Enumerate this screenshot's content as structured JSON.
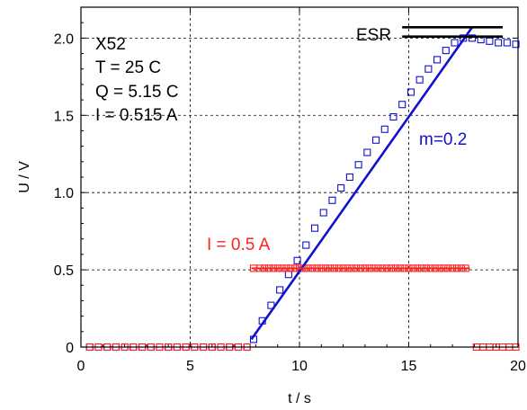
{
  "chart_data": {
    "type": "scatter",
    "xlabel": "t / s",
    "ylabel": "U / V",
    "xlim": [
      0,
      20
    ],
    "ylim": [
      0,
      2.2
    ],
    "x_ticks": [
      0,
      5,
      10,
      15,
      20
    ],
    "y_ticks": [
      0,
      0.5,
      1.0,
      1.5,
      2.0
    ],
    "x_tick_labels": [
      "0",
      "5",
      "10",
      "15",
      "20"
    ],
    "y_tick_labels": [
      "0",
      "0.5",
      "1.0",
      "1.5",
      "2.0"
    ],
    "grid": true,
    "grid_style": "dashed",
    "info_lines": [
      "X52",
      "T = 25 C",
      "Q = 5.15 C",
      "I = 0.515 A"
    ],
    "annotations": {
      "current": "I = 0.5 A",
      "slope": "m=0.2",
      "esr": "ESR"
    },
    "colors": {
      "voltage": "#1010d0",
      "current": "#ff2020",
      "fit": "#1010d0",
      "esr": "#000000",
      "grid": "#000000"
    },
    "series": [
      {
        "marker": "square-open",
        "color": "#1010d0",
        "x": [
          0.4,
          0.8,
          1.2,
          1.6,
          2.0,
          2.4,
          2.8,
          3.2,
          3.6,
          4.0,
          4.4,
          4.8,
          5.2,
          5.6,
          6.0,
          6.4,
          6.8,
          7.2,
          7.6,
          7.9,
          8.3,
          8.7,
          9.1,
          9.5,
          9.9,
          10.3,
          10.7,
          11.1,
          11.5,
          11.9,
          12.3,
          12.7,
          13.1,
          13.5,
          13.9,
          14.3,
          14.7,
          15.1,
          15.5,
          15.9,
          16.3,
          16.7,
          17.1,
          17.5,
          17.9,
          18.3,
          18.7,
          19.1,
          19.5,
          19.9
        ],
        "y": [
          0.0,
          0.0,
          0.0,
          0.0,
          0.0,
          0.0,
          0.0,
          0.0,
          0.0,
          0.0,
          0.0,
          0.0,
          0.0,
          0.0,
          0.0,
          0.0,
          0.0,
          0.0,
          0.0,
          0.05,
          0.17,
          0.27,
          0.37,
          0.47,
          0.56,
          0.66,
          0.77,
          0.87,
          0.95,
          1.03,
          1.1,
          1.18,
          1.26,
          1.34,
          1.41,
          1.49,
          1.57,
          1.65,
          1.73,
          1.8,
          1.86,
          1.92,
          1.97,
          2.0,
          2.0,
          1.99,
          1.98,
          1.97,
          1.97,
          1.96
        ]
      },
      {
        "marker": "square-open",
        "color": "#ff2020",
        "x": [
          0.4,
          0.8,
          1.2,
          1.6,
          2.0,
          2.4,
          2.8,
          3.2,
          3.6,
          4.0,
          4.4,
          4.8,
          5.2,
          5.6,
          6.0,
          6.4,
          6.8,
          7.2,
          7.6,
          7.9,
          8.2,
          8.4,
          8.6,
          8.8,
          9.0,
          9.2,
          9.4,
          9.6,
          9.8,
          10.0,
          10.2,
          10.4,
          10.6,
          10.8,
          11.0,
          11.2,
          11.4,
          11.6,
          11.8,
          12.0,
          12.2,
          12.4,
          12.6,
          12.8,
          13.0,
          13.2,
          13.4,
          13.6,
          13.8,
          14.0,
          14.2,
          14.4,
          14.6,
          14.8,
          15.0,
          15.2,
          15.4,
          15.6,
          15.8,
          16.0,
          16.2,
          16.4,
          16.6,
          16.8,
          17.0,
          17.2,
          17.4,
          17.6,
          18.1,
          18.4,
          18.7,
          19.0,
          19.3,
          19.6,
          19.9
        ],
        "y": [
          0.0,
          0.0,
          0.0,
          0.0,
          0.0,
          0.0,
          0.0,
          0.0,
          0.0,
          0.0,
          0.0,
          0.0,
          0.0,
          0.0,
          0.0,
          0.0,
          0.0,
          0.0,
          0.0,
          0.51,
          0.51,
          0.51,
          0.51,
          0.51,
          0.51,
          0.51,
          0.51,
          0.51,
          0.51,
          0.51,
          0.51,
          0.51,
          0.51,
          0.51,
          0.51,
          0.51,
          0.51,
          0.51,
          0.51,
          0.51,
          0.51,
          0.51,
          0.51,
          0.51,
          0.51,
          0.51,
          0.51,
          0.51,
          0.51,
          0.51,
          0.51,
          0.51,
          0.51,
          0.51,
          0.51,
          0.51,
          0.51,
          0.51,
          0.51,
          0.51,
          0.51,
          0.51,
          0.51,
          0.51,
          0.51,
          0.51,
          0.51,
          0.51,
          0.0,
          0.0,
          0.0,
          0.0,
          0.0,
          0.0,
          0.0
        ]
      }
    ],
    "fit_line": {
      "color": "#1010d0",
      "x": [
        7.8,
        17.9
      ],
      "y": [
        0.05,
        2.07
      ]
    },
    "current_level_line": {
      "color": "#ff2020",
      "x": [
        7.8,
        17.8
      ],
      "y": [
        0.51,
        0.51
      ]
    },
    "esr_lines": [
      {
        "x": [
          14.7,
          19.3
        ],
        "y": [
          2.07,
          2.07
        ]
      },
      {
        "x": [
          14.7,
          19.3
        ],
        "y": [
          2.01,
          2.01
        ]
      }
    ]
  }
}
